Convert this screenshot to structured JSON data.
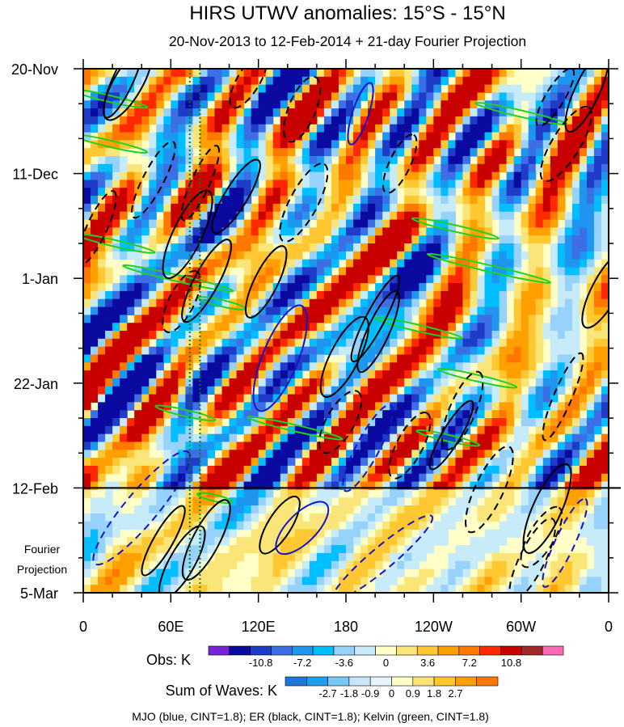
{
  "chart_data": {
    "type": "heatmap",
    "title": "HIRS UTWV anomalies: 15°S - 15°N",
    "subtitle": "20-Nov-2013 to 12-Feb-2014 + 21-day Fourier Projection",
    "x_tick_labels": [
      "0",
      "60E",
      "120E",
      "180",
      "120W",
      "60W",
      "0"
    ],
    "x_ticks_deg": [
      0,
      60,
      120,
      180,
      240,
      300,
      360
    ],
    "y_tick_labels": [
      "20-Nov",
      "11-Dec",
      "1-Jan",
      "22-Jan",
      "12-Feb",
      "5-Mar"
    ],
    "y_ticks_day": [
      0,
      21,
      42,
      63,
      84,
      105
    ],
    "projection_label": [
      "Fourier",
      "Projection"
    ],
    "observation_end_day": 84,
    "obs_colorbar": {
      "label": "Obs: K",
      "tick_labels": [
        "-10.8",
        "-7.2",
        "-3.6",
        "0",
        "3.6",
        "7.2",
        "10.8"
      ],
      "colors": [
        "#7a22d8",
        "#0a0aa0",
        "#1e3cc8",
        "#3c6ee6",
        "#1e96f0",
        "#00beff",
        "#96d2fa",
        "#c8ebfa",
        "#ffffc8",
        "#fae678",
        "#ffc832",
        "#ffa000",
        "#ff7800",
        "#ff2800",
        "#c80000",
        "#a02828",
        "#ff69b4"
      ]
    },
    "waves_colorbar": {
      "label": "Sum of Waves: K",
      "tick_labels": [
        "-2.7",
        "-1.8",
        "-0.9",
        "0",
        "0.9",
        "1.8",
        "2.7"
      ],
      "colors": [
        "#1e78dc",
        "#1ea0f0",
        "#78c8f5",
        "#c8e6fa",
        "#e6f5ff",
        "#ffffc8",
        "#fae178",
        "#ffc828",
        "#ffa000",
        "#ff7800"
      ]
    },
    "footer": "MJO (blue, CINT=1.8); ER (black, CINT=1.8); Kelvin (green, CINT=1.8)",
    "reference_lines_deg": [
      73,
      80
    ],
    "wave_colors": {
      "mjo": "#1414c8",
      "er": "#000000",
      "kelvin": "#1ed21e",
      "ref": "#0a7a0a"
    }
  }
}
